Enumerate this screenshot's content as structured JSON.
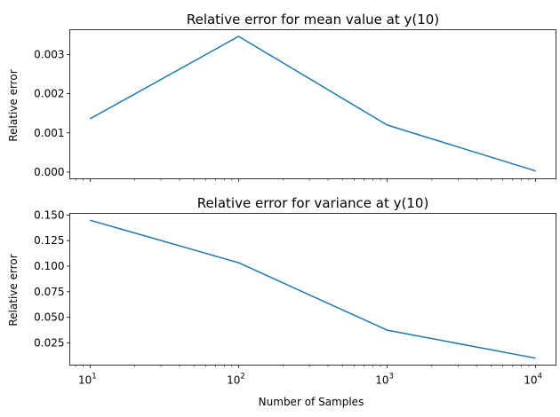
{
  "chart_data": [
    {
      "type": "line",
      "title": "Relative error for mean value at y(10)",
      "xlabel": "",
      "ylabel": "Relative error",
      "xscale": "log",
      "xlim": [
        7.3,
        13700
      ],
      "ylim": [
        -0.00017,
        0.00363
      ],
      "xticks": [
        10,
        100,
        1000,
        10000
      ],
      "xtick_labels_shown": false,
      "yticks": [
        0.0,
        0.001,
        0.002,
        0.003
      ],
      "ytick_labels": [
        "0.000",
        "0.001",
        "0.002",
        "0.003"
      ],
      "grid": false,
      "series": [
        {
          "x": [
            10,
            100,
            1000,
            10000
          ],
          "y": [
            0.00136,
            0.00346,
            0.0012,
            3e-05
          ],
          "color": "#1f77b4"
        }
      ]
    },
    {
      "type": "line",
      "title": "Relative error for variance at y(10)",
      "xlabel": "Number of Samples",
      "ylabel": "Relative error",
      "xscale": "log",
      "xlim": [
        7.3,
        13700
      ],
      "ylim": [
        0.0032,
        0.1517
      ],
      "xticks": [
        10,
        100,
        1000,
        10000
      ],
      "xtick_labels": [
        {
          "base": "10",
          "exp": "1"
        },
        {
          "base": "10",
          "exp": "2"
        },
        {
          "base": "10",
          "exp": "3"
        },
        {
          "base": "10",
          "exp": "4"
        }
      ],
      "yticks": [
        0.025,
        0.05,
        0.075,
        0.1,
        0.125,
        0.15
      ],
      "ytick_labels": [
        "0.025",
        "0.050",
        "0.075",
        "0.100",
        "0.125",
        "0.150"
      ],
      "grid": false,
      "series": [
        {
          "x": [
            10,
            100,
            1000,
            10000
          ],
          "y": [
            0.145,
            0.1034,
            0.0374,
            0.01
          ],
          "color": "#1f77b4"
        }
      ]
    }
  ]
}
